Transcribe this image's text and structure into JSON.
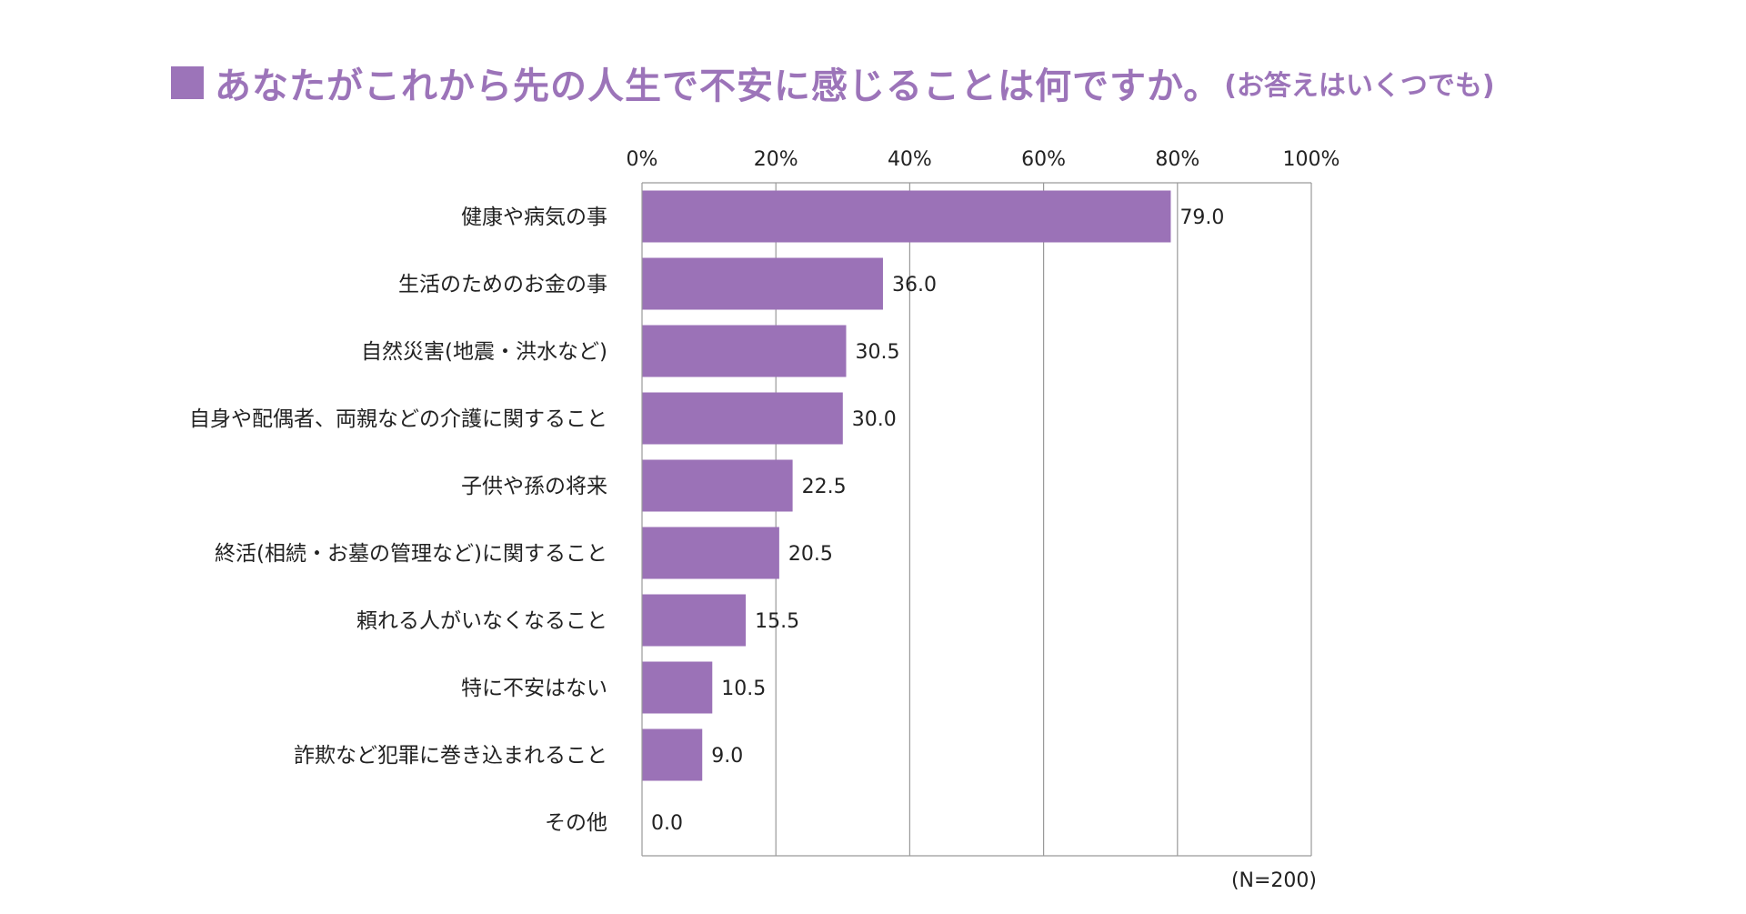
{
  "title": {
    "main": "あなたがこれから先の人生で不安に感じることは何ですか。",
    "sub": "(お答えはいくつでも)"
  },
  "colors": {
    "accent": "#9c74b9",
    "bar": "#9b72b7",
    "grid": "#9a9a9a"
  },
  "chart_data": {
    "type": "bar",
    "orientation": "horizontal",
    "title": "あなたがこれから先の人生で不安に感じることは何ですか。(お答えはいくつでも)",
    "xlim": [
      0,
      100
    ],
    "ticks": [
      "0%",
      "20%",
      "40%",
      "60%",
      "80%",
      "100%"
    ],
    "tick_values": [
      0,
      20,
      40,
      60,
      80,
      100
    ],
    "categories": [
      "健康や病気の事",
      "生活のためのお金の事",
      "自然災害(地震・洪水など)",
      "自身や配偶者、両親などの介護に関すること",
      "子供や孫の将来",
      "終活(相続・お墓の管理など)に関すること",
      "頼れる人がいなくなること",
      "特に不安はない",
      "詐欺など犯罪に巻き込まれること",
      "その他"
    ],
    "values": [
      79.0,
      36.0,
      30.5,
      30.0,
      22.5,
      20.5,
      15.5,
      10.5,
      9.0,
      0.0
    ],
    "value_labels": [
      "79.0",
      "36.0",
      "30.5",
      "30.0",
      "22.5",
      "20.5",
      "15.5",
      "10.5",
      "9.0",
      "0.0"
    ],
    "note": "(N=200)"
  }
}
